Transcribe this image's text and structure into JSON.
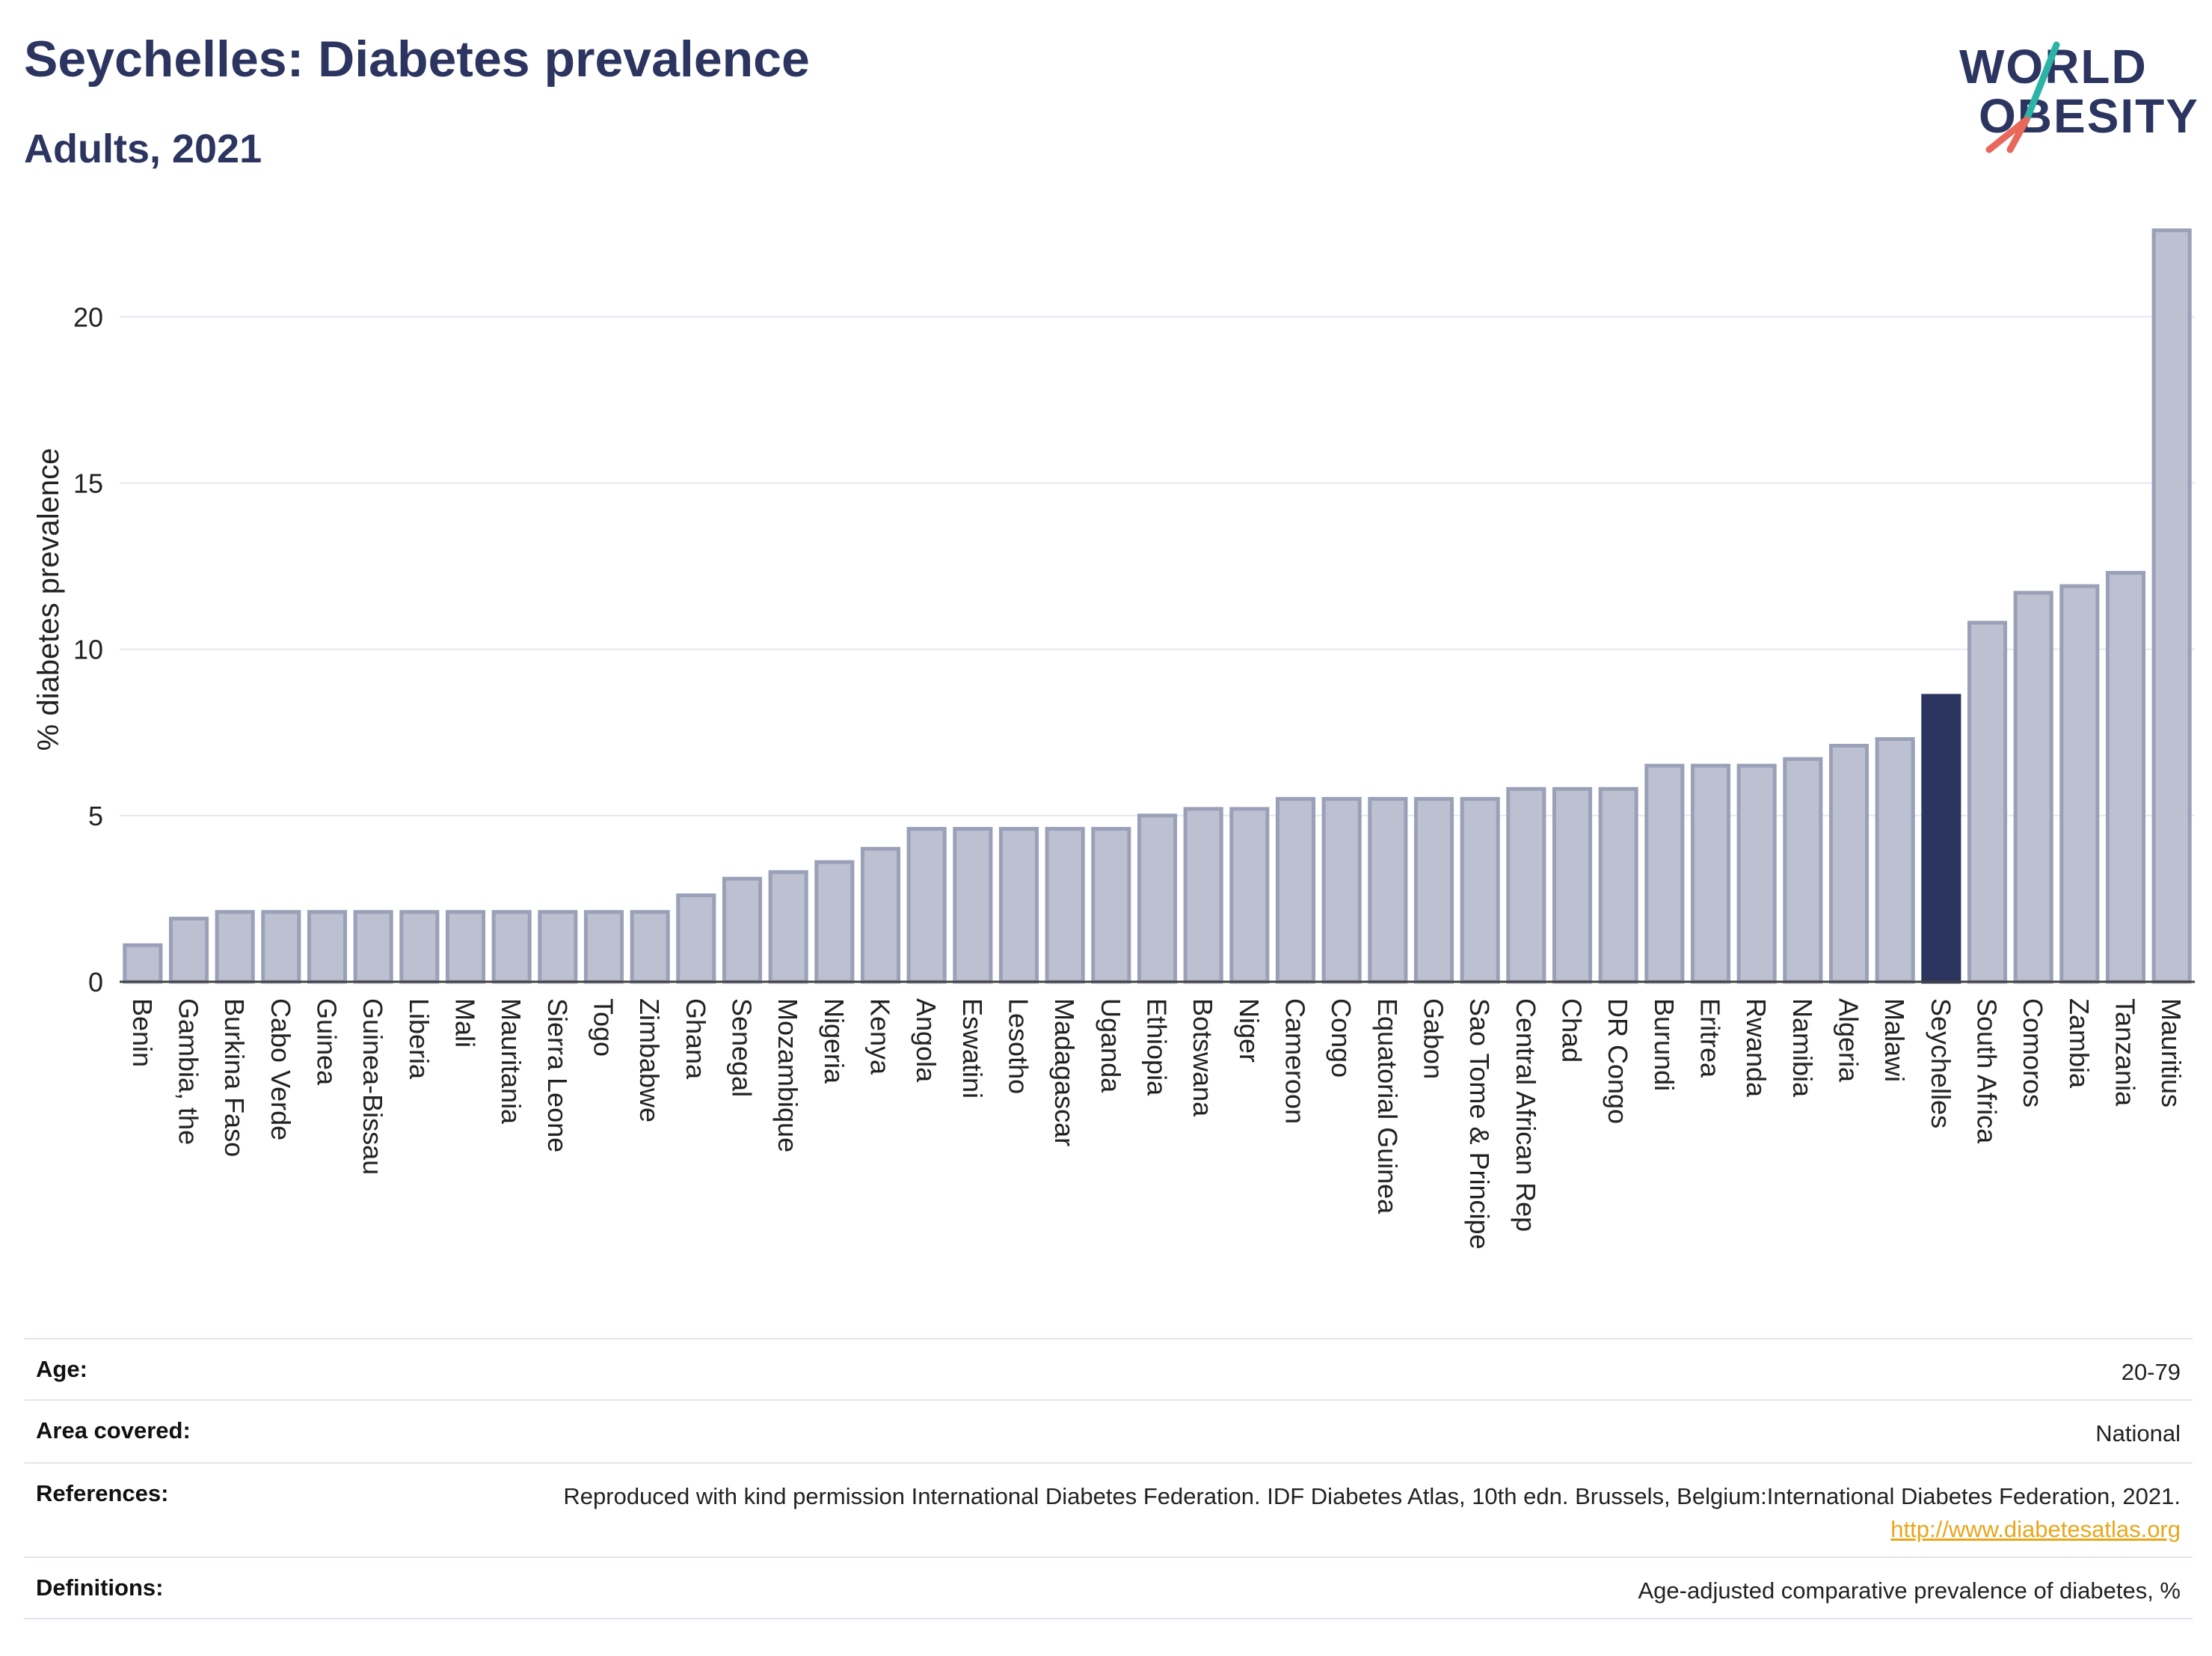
{
  "header": {
    "title": "Seychelles: Diabetes prevalence",
    "subtitle": "Adults, 2021"
  },
  "logo": {
    "text_line1": "WORLD",
    "text_line2": "OBESITY",
    "colors": {
      "text": "#2b3560",
      "slash_top": "#2ab3a6",
      "slash_bottom": "#e8685c"
    }
  },
  "chart_data": {
    "type": "bar",
    "title": "Seychelles: Diabetes prevalence",
    "subtitle": "Adults, 2021",
    "xlabel": "",
    "ylabel": "% diabetes prevalence",
    "ylim": [
      0,
      23
    ],
    "yticks": [
      0,
      5,
      10,
      15,
      20
    ],
    "grid": true,
    "highlight": "Seychelles",
    "colors": {
      "bar": "#bcc0d0",
      "bar_edge": "#9aa0b8",
      "highlight": "#2b3560",
      "grid": "#e6e8ef",
      "axis": "#444444"
    },
    "categories": [
      "Benin",
      "Gambia, the",
      "Burkina Faso",
      "Cabo Verde",
      "Guinea",
      "Guinea-Bissau",
      "Liberia",
      "Mali",
      "Mauritania",
      "Sierra Leone",
      "Togo",
      "Zimbabwe",
      "Ghana",
      "Senegal",
      "Mozambique",
      "Nigeria",
      "Kenya",
      "Angola",
      "Eswatini",
      "Lesotho",
      "Madagascar",
      "Uganda",
      "Ethiopia",
      "Botswana",
      "Niger",
      "Cameroon",
      "Congo",
      "Equatorial Guinea",
      "Gabon",
      "Sao Tome & Principe",
      "Central African Rep",
      "Chad",
      "DR Congo",
      "Burundi",
      "Eritrea",
      "Rwanda",
      "Namibia",
      "Algeria",
      "Malawi",
      "Seychelles",
      "South Africa",
      "Comoros",
      "Zambia",
      "Tanzania",
      "Mauritius"
    ],
    "values": [
      1.1,
      1.9,
      2.1,
      2.1,
      2.1,
      2.1,
      2.1,
      2.1,
      2.1,
      2.1,
      2.1,
      2.1,
      2.6,
      3.1,
      3.3,
      3.6,
      4.0,
      4.6,
      4.6,
      4.6,
      4.6,
      4.6,
      5.0,
      5.2,
      5.2,
      5.5,
      5.5,
      5.5,
      5.5,
      5.5,
      5.8,
      5.8,
      5.8,
      6.5,
      6.5,
      6.5,
      6.7,
      7.1,
      7.3,
      8.6,
      10.8,
      11.7,
      11.9,
      12.3,
      22.6
    ]
  },
  "meta": {
    "rows": [
      {
        "key": "Age:",
        "value": "20-79"
      },
      {
        "key": "Area covered:",
        "value": "National"
      },
      {
        "key": "References:",
        "value": "Reproduced with kind permission International Diabetes Federation.  IDF Diabetes Atlas, 10th edn. Brussels, Belgium:International Diabetes Federation, 2021.",
        "link": "http://www.diabetesatlas.org"
      },
      {
        "key": "Definitions:",
        "value": "Age-adjusted comparative prevalence of diabetes, %"
      }
    ]
  }
}
